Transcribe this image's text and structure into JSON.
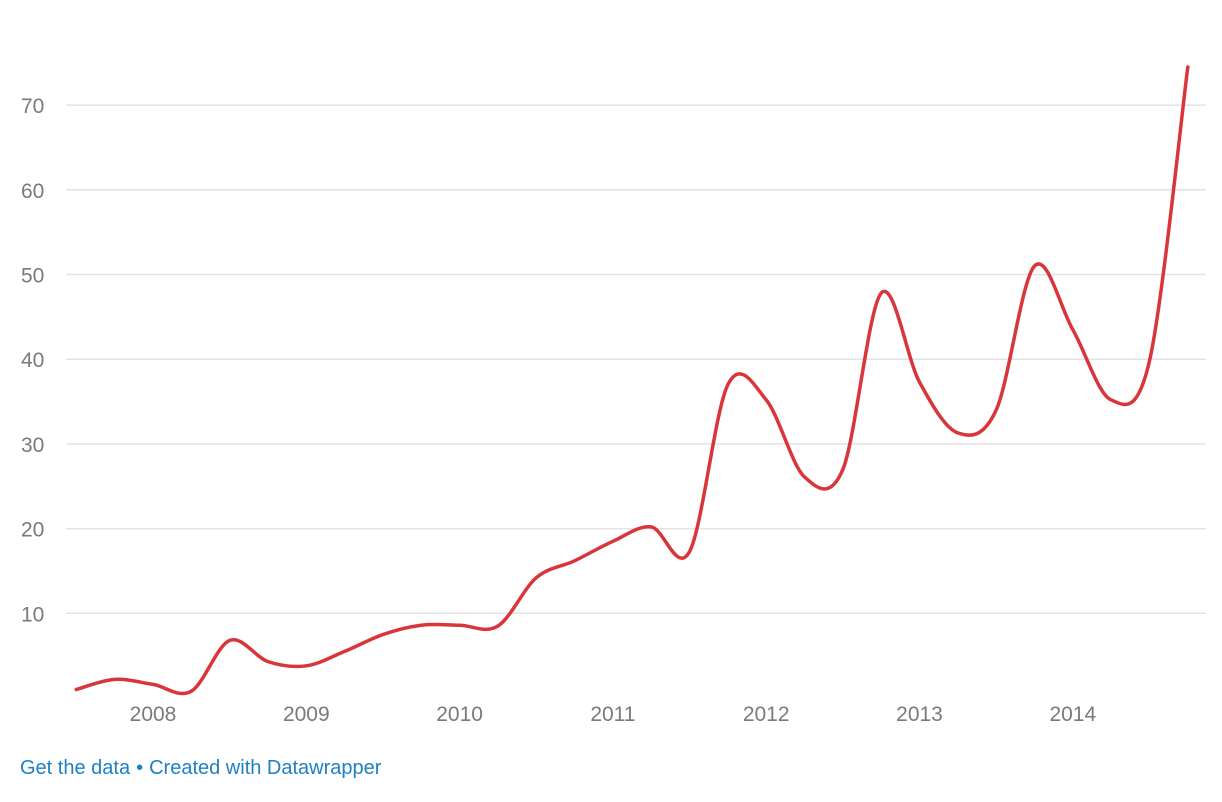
{
  "chart_data": {
    "type": "line",
    "title": "",
    "xlabel": "",
    "ylabel": "",
    "ylim": [
      0,
      77
    ],
    "y_ticks": [
      10,
      20,
      30,
      40,
      50,
      60,
      70
    ],
    "x_ticks": [
      "2008",
      "2009",
      "2010",
      "2011",
      "2012",
      "2013",
      "2014"
    ],
    "grid": true,
    "legend": "none",
    "colors": {
      "line": "#d9363b",
      "grid": "#e3e3e3",
      "tick": "#7a7a7a",
      "link": "#1d81c4"
    },
    "series": [
      {
        "x": [
          2007.5,
          2007.75,
          2008.0,
          2008.25,
          2008.5,
          2008.75,
          2009.0,
          2009.25,
          2009.5,
          2009.75,
          2010.0,
          2010.25,
          2010.5,
          2010.75,
          2011.0,
          2011.25,
          2011.5,
          2011.75,
          2012.0,
          2012.25,
          2012.5,
          2012.75,
          2013.0,
          2013.25,
          2013.5,
          2013.75,
          2014.0,
          2014.25,
          2014.5,
          2014.75
        ],
        "values": [
          1,
          2.2,
          1.6,
          0.8,
          6.8,
          4.3,
          3.8,
          5.5,
          7.5,
          8.6,
          8.6,
          8.5,
          14.2,
          16.2,
          18.5,
          20.2,
          17.3,
          37,
          35.2,
          26.1,
          27,
          47.8,
          37.3,
          31.3,
          34,
          51,
          43.5,
          35.2,
          39.8,
          74.5
        ]
      }
    ]
  },
  "footer": {
    "get_data": "Get the data",
    "separator": "•",
    "credit": "Created with Datawrapper"
  }
}
